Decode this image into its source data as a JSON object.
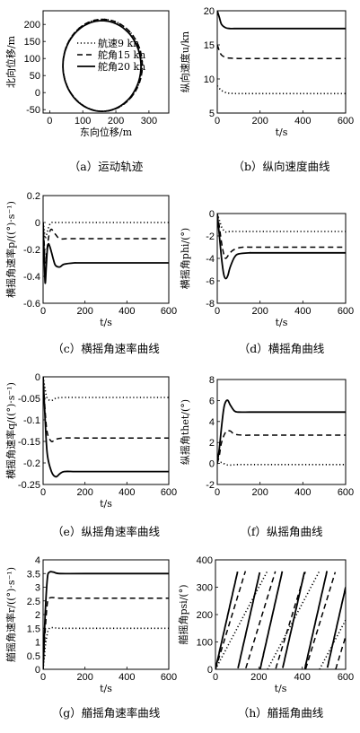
{
  "figure": {
    "legend_labels": [
      "航速9 kn",
      "舵角15 kn",
      "舵角20 kn"
    ]
  },
  "chart_data": [
    {
      "id": "a",
      "type": "line",
      "caption": "（a）运动轨迹",
      "xlabel": "东向位移/m",
      "ylabel": "北向位移/m",
      "xlim": [
        -20,
        360
      ],
      "ylim": [
        -60,
        240
      ],
      "xticks": [
        0,
        100,
        200,
        300
      ],
      "yticks": [
        -50,
        0,
        50,
        100,
        150,
        200
      ],
      "legend": {
        "placement": "center",
        "entries": [
          "航速9 kn",
          "舵角15 kn",
          "舵角20 kn"
        ]
      },
      "series": [
        {
          "name": "航速9 kn",
          "style": "dotted",
          "shape": "circle",
          "center": [
            160,
            80
          ],
          "radius": [
            120,
            135
          ]
        },
        {
          "name": "舵角15 kn",
          "style": "dashed",
          "shape": "circle",
          "center": [
            160,
            80
          ],
          "radius": [
            120,
            135
          ]
        },
        {
          "name": "舵角20 kn",
          "style": "solid",
          "shape": "circle",
          "center": [
            158,
            78
          ],
          "radius": [
            118,
            133
          ]
        }
      ]
    },
    {
      "id": "b",
      "type": "line",
      "caption": "（b）纵向速度曲线",
      "xlabel": "t/s",
      "ylabel": "纵向速度u/kn",
      "xlim": [
        0,
        600
      ],
      "ylim": [
        5,
        20
      ],
      "xticks": [
        0,
        200,
        400,
        600
      ],
      "yticks": [
        5,
        10,
        15,
        20
      ],
      "series": [
        {
          "style": "dotted",
          "x": [
            0,
            10,
            20,
            40,
            60,
            100,
            200,
            400,
            600
          ],
          "y": [
            9,
            8.6,
            8.3,
            8.0,
            7.9,
            7.85,
            7.85,
            7.85,
            7.85
          ]
        },
        {
          "style": "dashed",
          "x": [
            0,
            10,
            20,
            40,
            60,
            100,
            200,
            400,
            600
          ],
          "y": [
            15,
            14.1,
            13.5,
            13.15,
            13.05,
            13.0,
            13.0,
            13.0,
            13.0
          ]
        },
        {
          "style": "solid",
          "x": [
            0,
            10,
            20,
            40,
            60,
            100,
            200,
            400,
            600
          ],
          "y": [
            20,
            19.0,
            18.0,
            17.5,
            17.4,
            17.4,
            17.4,
            17.4,
            17.4
          ]
        }
      ]
    },
    {
      "id": "c",
      "type": "line",
      "caption": "（c）横摇角速率曲线",
      "xlabel": "t/s",
      "ylabel": "横摇角速率p/((°)·s⁻¹)",
      "xlim": [
        0,
        600
      ],
      "ylim": [
        -0.6,
        0.2
      ],
      "xticks": [
        0,
        200,
        400,
        600
      ],
      "yticks": [
        -0.6,
        -0.4,
        -0.2,
        0,
        0.2
      ],
      "series": [
        {
          "style": "dotted",
          "x": [
            0,
            5,
            10,
            20,
            30,
            40,
            60,
            100,
            200,
            600
          ],
          "y": [
            0,
            -0.05,
            -0.12,
            -0.07,
            -0.02,
            0.0,
            0.0,
            0.0,
            0.0,
            0.0
          ]
        },
        {
          "style": "dashed",
          "x": [
            0,
            5,
            10,
            20,
            30,
            40,
            60,
            80,
            120,
            200,
            600
          ],
          "y": [
            0,
            -0.15,
            -0.3,
            -0.18,
            -0.08,
            -0.05,
            -0.09,
            -0.12,
            -0.12,
            -0.12,
            -0.12
          ]
        },
        {
          "style": "solid",
          "x": [
            0,
            5,
            10,
            15,
            20,
            25,
            30,
            40,
            50,
            60,
            80,
            100,
            150,
            200,
            600
          ],
          "y": [
            0,
            -0.25,
            -0.45,
            -0.33,
            -0.2,
            -0.16,
            -0.17,
            -0.22,
            -0.28,
            -0.32,
            -0.33,
            -0.31,
            -0.3,
            -0.3,
            -0.3
          ]
        }
      ]
    },
    {
      "id": "d",
      "type": "line",
      "caption": "（d）横摇角曲线",
      "xlabel": "t/s",
      "ylabel": "横摇角phi/(°)",
      "xlim": [
        0,
        600
      ],
      "ylim": [
        -8,
        0
      ],
      "xticks": [
        0,
        200,
        400,
        600
      ],
      "yticks": [
        -8,
        -6,
        -4,
        -2,
        0
      ],
      "series": [
        {
          "style": "dotted",
          "x": [
            0,
            10,
            20,
            30,
            40,
            60,
            100,
            200,
            600
          ],
          "y": [
            0,
            -0.6,
            -1.2,
            -1.5,
            -1.65,
            -1.6,
            -1.6,
            -1.6,
            -1.6
          ]
        },
        {
          "style": "dashed",
          "x": [
            0,
            10,
            20,
            30,
            40,
            60,
            80,
            120,
            200,
            600
          ],
          "y": [
            0,
            -1.2,
            -2.6,
            -3.6,
            -4.0,
            -3.5,
            -3.2,
            -3.0,
            -3.0,
            -3.0
          ]
        },
        {
          "style": "solid",
          "x": [
            0,
            10,
            20,
            30,
            40,
            50,
            60,
            80,
            100,
            150,
            200,
            600
          ],
          "y": [
            0,
            -2.0,
            -4.0,
            -5.4,
            -5.8,
            -5.5,
            -4.8,
            -3.9,
            -3.6,
            -3.5,
            -3.5,
            -3.5
          ]
        }
      ]
    },
    {
      "id": "e",
      "type": "line",
      "caption": "（e）纵摇角速率曲线",
      "xlabel": "t/s",
      "ylabel": "横摇角速率q/((°)·s⁻¹)",
      "xlim": [
        0,
        600
      ],
      "ylim": [
        -0.25,
        0.0
      ],
      "xticks": [
        0,
        200,
        400,
        600
      ],
      "yticks": [
        -0.25,
        -0.2,
        -0.15,
        -0.1,
        -0.05,
        0
      ],
      "series": [
        {
          "style": "dotted",
          "x": [
            0,
            10,
            20,
            40,
            60,
            100,
            200,
            600
          ],
          "y": [
            0,
            -0.03,
            -0.05,
            -0.055,
            -0.05,
            -0.048,
            -0.048,
            -0.048
          ]
        },
        {
          "style": "dashed",
          "x": [
            0,
            10,
            20,
            40,
            60,
            100,
            200,
            600
          ],
          "y": [
            0,
            -0.08,
            -0.13,
            -0.15,
            -0.145,
            -0.142,
            -0.142,
            -0.142
          ]
        },
        {
          "style": "solid",
          "x": [
            0,
            10,
            20,
            40,
            60,
            80,
            100,
            150,
            200,
            600
          ],
          "y": [
            0,
            -0.1,
            -0.18,
            -0.22,
            -0.232,
            -0.225,
            -0.22,
            -0.22,
            -0.22,
            -0.22
          ]
        }
      ]
    },
    {
      "id": "f",
      "type": "line",
      "caption": "（f）纵摇角曲线",
      "xlabel": "",
      "ylabel": "纵摇角thet/(°)",
      "xlim": [
        0,
        600
      ],
      "ylim": [
        -2,
        8
      ],
      "xticks": [
        0,
        200,
        400,
        600
      ],
      "yticks": [
        -2,
        0,
        2,
        4,
        6,
        8
      ],
      "series": [
        {
          "style": "dotted",
          "x": [
            0,
            20,
            40,
            60,
            100,
            200,
            600
          ],
          "y": [
            0,
            0.1,
            -0.1,
            -0.15,
            -0.1,
            -0.1,
            -0.1
          ]
        },
        {
          "style": "dashed",
          "x": [
            0,
            10,
            20,
            40,
            60,
            80,
            120,
            200,
            600
          ],
          "y": [
            0,
            0.8,
            2.0,
            3.0,
            3.1,
            2.8,
            2.7,
            2.7,
            2.7
          ]
        },
        {
          "style": "solid",
          "x": [
            0,
            10,
            20,
            30,
            40,
            50,
            60,
            80,
            100,
            150,
            200,
            600
          ],
          "y": [
            0,
            1.5,
            3.5,
            5.2,
            5.9,
            6.0,
            5.6,
            5.0,
            4.9,
            4.9,
            4.9,
            4.9
          ]
        }
      ]
    },
    {
      "id": "g",
      "type": "line",
      "caption": "（g）艏摇角速率曲线",
      "xlabel": "t/s",
      "ylabel": "艏摇角速率r/((°)·s⁻¹)",
      "xlim": [
        0,
        600
      ],
      "ylim": [
        0,
        4
      ],
      "xticks": [
        0,
        200,
        400,
        600
      ],
      "yticks": [
        0,
        0.5,
        1,
        1.5,
        2,
        2.5,
        3,
        3.5,
        4
      ],
      "series": [
        {
          "style": "dotted",
          "x": [
            0,
            10,
            20,
            30,
            50,
            80,
            200,
            600
          ],
          "y": [
            0,
            0.8,
            1.3,
            1.5,
            1.52,
            1.5,
            1.5,
            1.5
          ]
        },
        {
          "style": "dashed",
          "x": [
            0,
            10,
            20,
            30,
            50,
            80,
            200,
            600
          ],
          "y": [
            0,
            1.4,
            2.4,
            2.6,
            2.62,
            2.6,
            2.6,
            2.6
          ]
        },
        {
          "style": "solid",
          "x": [
            0,
            10,
            20,
            30,
            50,
            80,
            200,
            600
          ],
          "y": [
            0,
            2.0,
            3.3,
            3.55,
            3.55,
            3.5,
            3.5,
            3.5
          ]
        }
      ]
    },
    {
      "id": "h",
      "type": "line",
      "caption": "（h）艏摇角曲线",
      "xlabel": "t/s",
      "ylabel": "艏摇角psi/(°)",
      "xlim": [
        0,
        600
      ],
      "ylim": [
        0,
        400
      ],
      "xticks": [
        0,
        200,
        400,
        600
      ],
      "yticks": [
        0,
        100,
        200,
        300,
        400
      ],
      "series": [
        {
          "style": "dotted",
          "wrap_period": 360,
          "rate": 1.5,
          "end": 600
        },
        {
          "style": "dashed",
          "wrap_period": 360,
          "rate": 2.6,
          "end": 600
        },
        {
          "style": "solid",
          "wrap_period": 360,
          "rate": 3.5,
          "end": 600
        }
      ]
    }
  ]
}
